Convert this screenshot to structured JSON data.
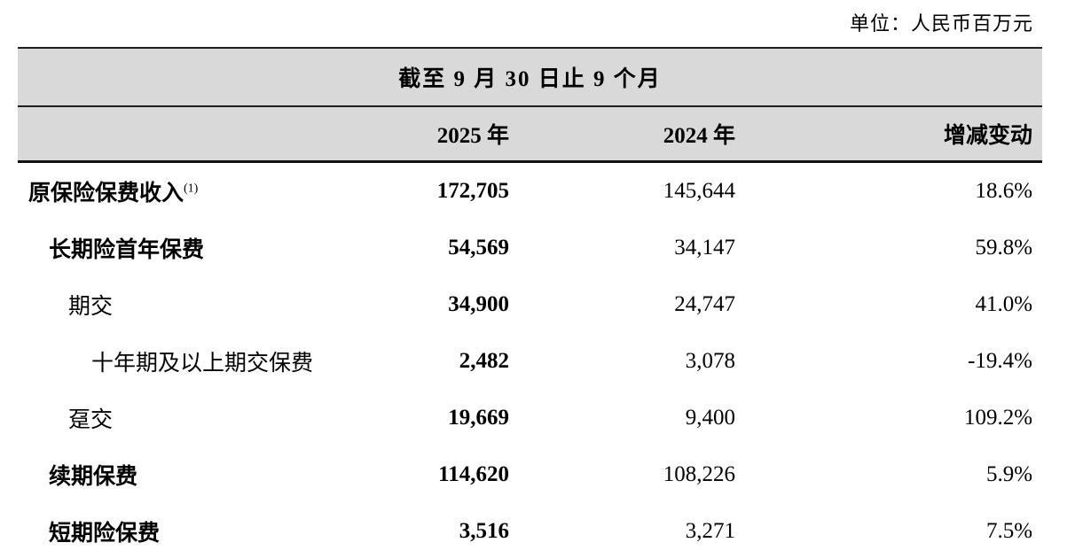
{
  "unit_note": "单位：人民币百万元",
  "table": {
    "period_header": "截至 9 月 30 日止 9 个月",
    "columns": [
      "2025 年",
      "2024 年",
      "增减变动"
    ],
    "rows": [
      {
        "label": "原保险保费收入",
        "footnote": "(1)",
        "indent": 0,
        "bold": true,
        "v2025": "172,705",
        "v2024": "145,644",
        "change": "18.6%"
      },
      {
        "label": "长期险首年保费",
        "footnote": "",
        "indent": 1,
        "bold": true,
        "v2025": "54,569",
        "v2024": "34,147",
        "change": "59.8%"
      },
      {
        "label": "期交",
        "footnote": "",
        "indent": 2,
        "bold": false,
        "v2025": "34,900",
        "v2024": "24,747",
        "change": "41.0%"
      },
      {
        "label": "十年期及以上期交保费",
        "footnote": "",
        "indent": 3,
        "bold": false,
        "v2025": "2,482",
        "v2024": "3,078",
        "change": "-19.4%"
      },
      {
        "label": "趸交",
        "footnote": "",
        "indent": 2,
        "bold": false,
        "v2025": "19,669",
        "v2024": "9,400",
        "change": "109.2%"
      },
      {
        "label": "续期保费",
        "footnote": "",
        "indent": 1,
        "bold": true,
        "v2025": "114,620",
        "v2024": "108,226",
        "change": "5.9%"
      },
      {
        "label": "短期险保费",
        "footnote": "",
        "indent": 1,
        "bold": true,
        "v2025": "3,516",
        "v2024": "3,271",
        "change": "7.5%"
      }
    ],
    "colors": {
      "header_bg": "#d9d9d9",
      "border": "#1f1f1f",
      "text": "#000000"
    }
  }
}
